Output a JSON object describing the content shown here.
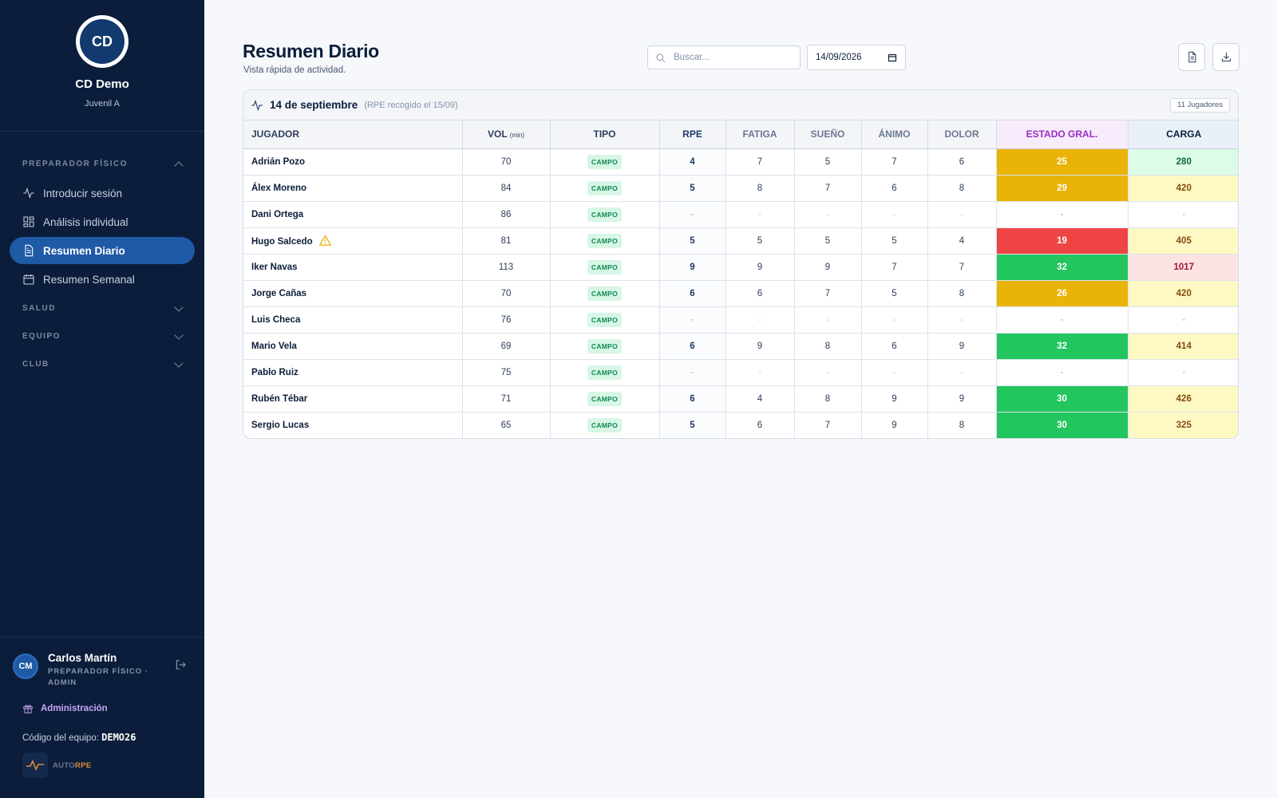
{
  "sidebar": {
    "club_initials": "CD",
    "club_name": "CD Demo",
    "club_category": "Juvenil A",
    "sections": {
      "preparador": "PREPARADOR FÍSICO",
      "salud": "SALUD",
      "equipo": "EQUIPO",
      "club": "CLUB"
    },
    "items": [
      {
        "label": "Introducir sesión",
        "icon": "activity-icon"
      },
      {
        "label": "Análisis individual",
        "icon": "grid-icon"
      },
      {
        "label": "Resumen Diario",
        "icon": "document-icon",
        "active": true
      },
      {
        "label": "Resumen Semanal",
        "icon": "calendar-icon"
      }
    ],
    "user": {
      "initials": "CM",
      "name": "Carlos Martín",
      "role": "PREPARADOR FÍSICO · ADMIN"
    },
    "admin_label": "Administración",
    "team_code_label": "Código del equipo:",
    "team_code": "DEMO26",
    "app_logo": {
      "part1": "AUTO",
      "part2": "RPE"
    }
  },
  "header": {
    "title": "Resumen Diario",
    "subtitle": "Vista rápida de actividad.",
    "search_placeholder": "Buscar...",
    "date_value": "14/09/2026"
  },
  "card": {
    "date": "14 de septiembre",
    "note": "(RPE recogido el 15/09)",
    "player_count": "11 Jugadores"
  },
  "columns": {
    "jugador": "JUGADOR",
    "vol": "VOL",
    "vol_unit": "(min)",
    "tipo": "TIPO",
    "rpe": "RPE",
    "fatiga": "FATIGA",
    "sueno": "SUEÑO",
    "animo": "ÁNIMO",
    "dolor": "DOLOR",
    "estado": "ESTADO GRAL.",
    "carga": "CARGA"
  },
  "colors": {
    "estado_amber": "#eab308",
    "estado_red": "#ef4444",
    "estado_green": "#22c55e",
    "carga_green_bg": "#dcfce7",
    "carga_yellow_bg": "#fef9c3",
    "carga_red_bg": "#fde2e4"
  },
  "rows": [
    {
      "name": "Adrián Pozo",
      "vol": "70",
      "tipo": "CAMPO",
      "rpe": "4",
      "fatiga": "7",
      "sueno": "5",
      "animo": "7",
      "dolor": "6",
      "estado": "25",
      "estado_level": "amber",
      "carga": "280",
      "carga_level": "green"
    },
    {
      "name": "Álex Moreno",
      "vol": "84",
      "tipo": "CAMPO",
      "rpe": "5",
      "fatiga": "8",
      "sueno": "7",
      "animo": "6",
      "dolor": "8",
      "estado": "29",
      "estado_level": "amber",
      "carga": "420",
      "carga_level": "yellow"
    },
    {
      "name": "Dani Ortega",
      "vol": "86",
      "tipo": "CAMPO",
      "rpe": "-",
      "fatiga": "-",
      "sueno": "-",
      "animo": "-",
      "dolor": "-",
      "estado": "-",
      "estado_level": "none",
      "carga": "-",
      "carga_level": "none"
    },
    {
      "name": "Hugo Salcedo",
      "warning": true,
      "vol": "81",
      "tipo": "CAMPO",
      "rpe": "5",
      "fatiga": "5",
      "sueno": "5",
      "animo": "5",
      "dolor": "4",
      "estado": "19",
      "estado_level": "red",
      "carga": "405",
      "carga_level": "yellow"
    },
    {
      "name": "Iker Navas",
      "vol": "113",
      "tipo": "CAMPO",
      "rpe": "9",
      "fatiga": "9",
      "sueno": "9",
      "animo": "7",
      "dolor": "7",
      "estado": "32",
      "estado_level": "green",
      "carga": "1017",
      "carga_level": "red"
    },
    {
      "name": "Jorge Cañas",
      "vol": "70",
      "tipo": "CAMPO",
      "rpe": "6",
      "fatiga": "6",
      "sueno": "7",
      "animo": "5",
      "dolor": "8",
      "estado": "26",
      "estado_level": "amber",
      "carga": "420",
      "carga_level": "yellow"
    },
    {
      "name": "Luis Checa",
      "vol": "76",
      "tipo": "CAMPO",
      "rpe": "-",
      "fatiga": "-",
      "sueno": "-",
      "animo": "-",
      "dolor": "-",
      "estado": "-",
      "estado_level": "none",
      "carga": "-",
      "carga_level": "none"
    },
    {
      "name": "Mario Vela",
      "vol": "69",
      "tipo": "CAMPO",
      "rpe": "6",
      "fatiga": "9",
      "sueno": "8",
      "animo": "6",
      "dolor": "9",
      "estado": "32",
      "estado_level": "green",
      "carga": "414",
      "carga_level": "yellow"
    },
    {
      "name": "Pablo Ruiz",
      "vol": "75",
      "tipo": "CAMPO",
      "rpe": "-",
      "fatiga": "-",
      "sueno": "-",
      "animo": "-",
      "dolor": "-",
      "estado": "-",
      "estado_level": "none",
      "carga": "-",
      "carga_level": "none"
    },
    {
      "name": "Rubén Tébar",
      "vol": "71",
      "tipo": "CAMPO",
      "rpe": "6",
      "fatiga": "4",
      "sueno": "8",
      "animo": "9",
      "dolor": "9",
      "estado": "30",
      "estado_level": "green",
      "carga": "426",
      "carga_level": "yellow"
    },
    {
      "name": "Sergio Lucas",
      "vol": "65",
      "tipo": "CAMPO",
      "rpe": "5",
      "fatiga": "6",
      "sueno": "7",
      "animo": "9",
      "dolor": "8",
      "estado": "30",
      "estado_level": "green",
      "carga": "325",
      "carga_level": "yellow"
    }
  ]
}
